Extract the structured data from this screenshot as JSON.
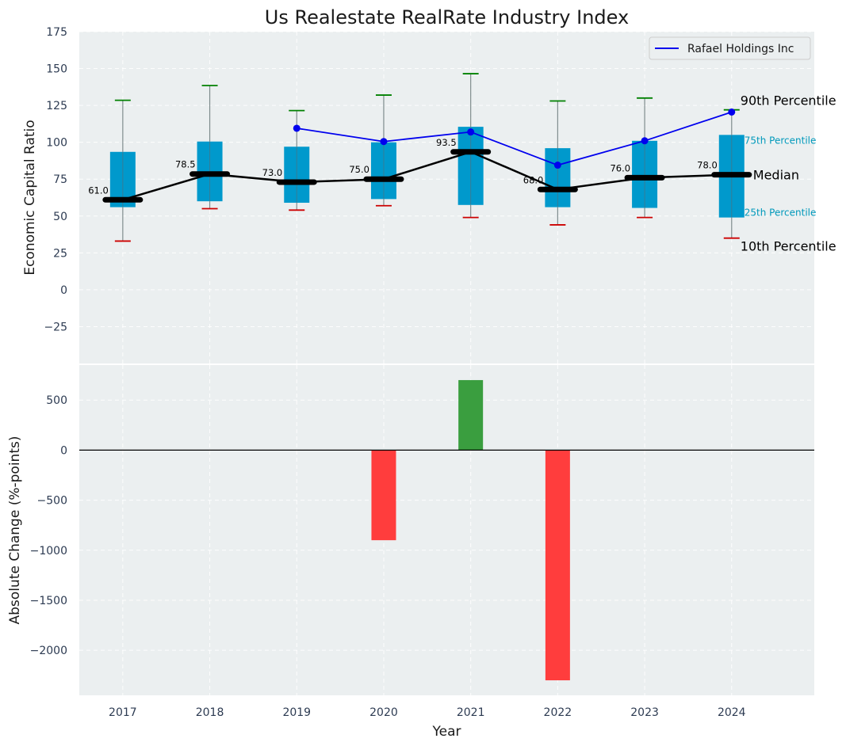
{
  "chart_data": [
    {
      "type": "box",
      "title": "Us Realestate RealRate Industry Index",
      "ylabel": "Economic Capital Ratio",
      "ylim": [
        -50,
        175
      ],
      "yticks": [
        -25,
        0,
        25,
        50,
        75,
        100,
        125,
        150,
        175
      ],
      "categories": [
        "2017",
        "2018",
        "2019",
        "2020",
        "2021",
        "2022",
        "2023",
        "2024"
      ],
      "boxes": [
        {
          "p10": 33.0,
          "p25": 56.0,
          "median": 61.0,
          "p75": 93.5,
          "p90": 128.5,
          "median_label": "61.0"
        },
        {
          "p10": 55.0,
          "p25": 60.0,
          "median": 78.5,
          "p75": 100.5,
          "p90": 138.5,
          "median_label": "78.5"
        },
        {
          "p10": 54.0,
          "p25": 59.0,
          "median": 73.0,
          "p75": 97.0,
          "p90": 121.5,
          "median_label": "73.0"
        },
        {
          "p10": 57.0,
          "p25": 61.5,
          "median": 75.0,
          "p75": 100.0,
          "p90": 132.0,
          "median_label": "75.0"
        },
        {
          "p10": 49.0,
          "p25": 57.5,
          "median": 93.5,
          "p75": 110.5,
          "p90": 146.5,
          "median_label": "93.5"
        },
        {
          "p10": 44.0,
          "p25": 56.0,
          "median": 68.0,
          "p75": 96.0,
          "p90": 128.0,
          "median_label": "68.0"
        },
        {
          "p10": 49.0,
          "p25": 55.5,
          "median": 76.0,
          "p75": 101.0,
          "p90": 130.0,
          "median_label": "76.0"
        },
        {
          "p10": 35.0,
          "p25": 49.0,
          "median": 78.0,
          "p75": 105.0,
          "p90": 122.0,
          "median_label": "78.0"
        }
      ],
      "series": [
        {
          "name": "Rafael Holdings Inc",
          "color": "#0000ee",
          "x": [
            "2019",
            "2020",
            "2021",
            "2022",
            "2023",
            "2024"
          ],
          "values": [
            109.5,
            100.5,
            107.0,
            84.5,
            101.0,
            120.5
          ]
        }
      ],
      "legend": {
        "placement": "top-right",
        "entries": [
          "Rafael Holdings Inc"
        ]
      },
      "annotations": {
        "p90": "90th Percentile",
        "p75": "75th Percentile",
        "median": "Median",
        "p25": "25th Percentile",
        "p10": "10th Percentile"
      },
      "colors": {
        "box": "#0099cc",
        "p90_cap": "#008000",
        "p10_cap": "#cc0000",
        "median": "#000000",
        "background": "#ebeff0",
        "annotation_small": "#0099bb"
      },
      "grid": true
    },
    {
      "type": "bar",
      "xlabel": "Year",
      "ylabel": "Absolute Change (%-points)",
      "ylim": [
        -2450,
        850
      ],
      "yticks": [
        -2000,
        -1500,
        -1000,
        -500,
        0,
        500
      ],
      "categories": [
        "2017",
        "2018",
        "2019",
        "2020",
        "2021",
        "2022",
        "2023",
        "2024"
      ],
      "values": [
        0,
        0,
        0,
        -900,
        700,
        -2300,
        0,
        0
      ],
      "colors": {
        "positive": "#3a9e3f",
        "negative": "#ff3d3d",
        "zero_line": "#000000",
        "background": "#ebeff0"
      },
      "grid": true
    }
  ]
}
